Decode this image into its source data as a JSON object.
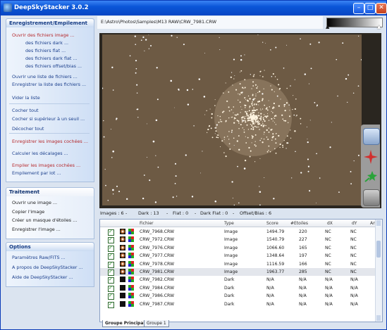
{
  "window": {
    "title": "DeepSkyStacker 3.0.2"
  },
  "colors": {
    "titlebar": "#0a56d8",
    "accent_red": "#b5282b",
    "link_blue": "#1b3f8c",
    "sky": "#6d5a44"
  },
  "groups": {
    "stacking": {
      "header": "Enregistrement/Empilement",
      "items": {
        "open_images": "Ouvrir des fichiers image ...",
        "dark_files": "des fichiers dark ...",
        "flat_files": "des fichiers flat ...",
        "dark_flat_files": "des fichiers dark flat ...",
        "offset_files": "des fichiers offset/bias ...",
        "open_list": "Ouvrir une liste de fichiers ...",
        "save_list": "Enregistrer la liste des fichiers ...",
        "clear_list": "Vider la liste",
        "check_all": "Cocher tout",
        "check_above": "Cocher si supérieur à un seuil ...",
        "uncheck_all": "Décocher tout",
        "register_checked": "Enregistrer les images cochées ...",
        "compute_offsets": "Calculer les décalages ...",
        "stack_checked": "Empiler les images cochées ...",
        "batch_stacking": "Empilement par lot ..."
      }
    },
    "processing": {
      "header": "Traitement",
      "items": {
        "open_image": "Ouvrir une image ...",
        "copy_image": "Copier l'image",
        "star_mask": "Créer un masque d'étoiles ...",
        "save_image": "Enregistrer l'image ..."
      }
    },
    "options": {
      "header": "Options",
      "items": {
        "raw_settings": "Paramètres Raw/FITS ...",
        "about": "A propos de DeepSkyStacker ...",
        "help": "Aide de DeepSkyStacker ..."
      }
    }
  },
  "viewer": {
    "path": "E:\\Astro\\Photos\\Samples\\M13 RAW\\CRW_7981.CRW"
  },
  "status": {
    "images": "Images : 6",
    "dark": "Dark : 13",
    "flat": "Flat : 0",
    "dark_flat": "Dark Flat : 0",
    "offset": "Offset/Bias : 6"
  },
  "table": {
    "headers": [
      "Fichier",
      "Type",
      "Score",
      "#Etoiles",
      "dX",
      "dY",
      "An"
    ],
    "rows": [
      {
        "file": "CRW_7968.CRW",
        "type": "Image",
        "score": "1494.79",
        "stars": "220",
        "dx": "NC",
        "dy": "NC",
        "kind": "img"
      },
      {
        "file": "CRW_7972.CRW",
        "type": "Image",
        "score": "1540.79",
        "stars": "227",
        "dx": "NC",
        "dy": "NC",
        "kind": "img"
      },
      {
        "file": "CRW_7976.CRW",
        "type": "Image",
        "score": "1066.60",
        "stars": "165",
        "dx": "NC",
        "dy": "NC",
        "kind": "img"
      },
      {
        "file": "CRW_7977.CRW",
        "type": "Image",
        "score": "1348.64",
        "stars": "197",
        "dx": "NC",
        "dy": "NC",
        "kind": "img"
      },
      {
        "file": "CRW_7978.CRW",
        "type": "Image",
        "score": "1116.59",
        "stars": "166",
        "dx": "NC",
        "dy": "NC",
        "kind": "img"
      },
      {
        "file": "CRW_7981.CRW",
        "type": "Image",
        "score": "1963.77",
        "stars": "285",
        "dx": "NC",
        "dy": "NC",
        "kind": "img"
      },
      {
        "file": "CRW_7982.CRW",
        "type": "Dark",
        "score": "N/A",
        "stars": "N/A",
        "dx": "N/A",
        "dy": "N/A",
        "kind": "dark"
      },
      {
        "file": "CRW_7984.CRW",
        "type": "Dark",
        "score": "N/A",
        "stars": "N/A",
        "dx": "N/A",
        "dy": "N/A",
        "kind": "dark"
      },
      {
        "file": "CRW_7986.CRW",
        "type": "Dark",
        "score": "N/A",
        "stars": "N/A",
        "dx": "N/A",
        "dy": "N/A",
        "kind": "dark"
      },
      {
        "file": "CRW_7987.CRW",
        "type": "Dark",
        "score": "N/A",
        "stars": "N/A",
        "dx": "N/A",
        "dy": "N/A",
        "kind": "dark"
      }
    ]
  },
  "tabs": [
    "Groupe Principal",
    "Groupe 1"
  ]
}
